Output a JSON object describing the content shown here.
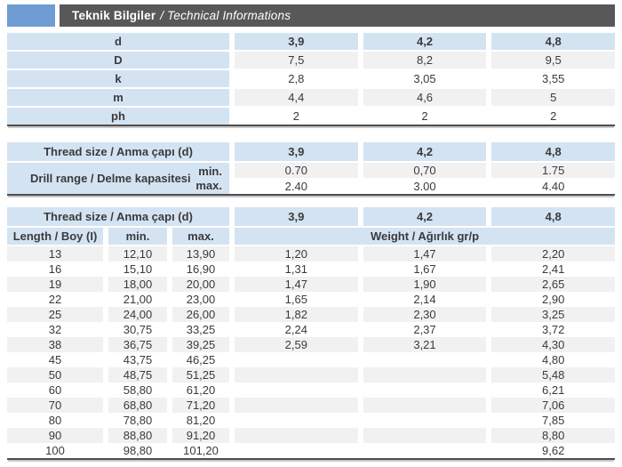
{
  "header": {
    "title_turkish": "Teknik Bilgiler",
    "title_english": "/ Technical Informations",
    "bar_color": "#58585a",
    "accent_color": "#6f9cd2"
  },
  "colors": {
    "header_cell_blue": "#d4e3f2",
    "row_stripe_gray": "#f1f1f2",
    "row_white": "#ffffff",
    "text": "#3a3a3c",
    "table_border": "#4e4e50"
  },
  "dimensions_table": {
    "rows": [
      {
        "label": "d",
        "header": true,
        "values": [
          "3,9",
          "4,2",
          "4,8"
        ]
      },
      {
        "label": "D",
        "header": false,
        "values": [
          "7,5",
          "8,2",
          "9,5"
        ]
      },
      {
        "label": "k",
        "header": false,
        "values": [
          "2,8",
          "3,05",
          "3,55"
        ]
      },
      {
        "label": "m",
        "header": false,
        "values": [
          "4,4",
          "4,6",
          "5"
        ]
      },
      {
        "label": "ph",
        "header": false,
        "values": [
          "2",
          "2",
          "2"
        ]
      }
    ]
  },
  "drill_table": {
    "header_label": "Thread size / Anma çapı (d)",
    "header_values": [
      "3,9",
      "4,2",
      "4,8"
    ],
    "range_label": "Drill range / Delme kapasitesi",
    "min_label": "min.",
    "max_label": "max.",
    "min_values": [
      "0.70",
      "0,70",
      "1.75"
    ],
    "max_values": [
      "2.40",
      "3.00",
      "4.40"
    ]
  },
  "length_table": {
    "header_label": "Thread size / Anma çapı (d)",
    "header_values": [
      "3,9",
      "4,2",
      "4,8"
    ],
    "length_col_label": "Length / Boy (I)",
    "min_col_label": "min.",
    "max_col_label": "max.",
    "weight_label": "Weight / Ağırlık gr/p",
    "rows": [
      {
        "length": "13",
        "min": "12,10",
        "max": "13,90",
        "weights": [
          "1,20",
          "1,47",
          "2,20"
        ]
      },
      {
        "length": "16",
        "min": "15,10",
        "max": "16,90",
        "weights": [
          "1,31",
          "1,67",
          "2,41"
        ]
      },
      {
        "length": "19",
        "min": "18,00",
        "max": "20,00",
        "weights": [
          "1,47",
          "1,90",
          "2,65"
        ]
      },
      {
        "length": "22",
        "min": "21,00",
        "max": "23,00",
        "weights": [
          "1,65",
          "2,14",
          "2,90"
        ]
      },
      {
        "length": "25",
        "min": "24,00",
        "max": "26,00",
        "weights": [
          "1,82",
          "2,30",
          "3,25"
        ]
      },
      {
        "length": "32",
        "min": "30,75",
        "max": "33,25",
        "weights": [
          "2,24",
          "2,37",
          "3,72"
        ]
      },
      {
        "length": "38",
        "min": "36,75",
        "max": "39,25",
        "weights": [
          "2,59",
          "3,21",
          "4,30"
        ]
      },
      {
        "length": "45",
        "min": "43,75",
        "max": "46,25",
        "weights": [
          "",
          "",
          "4,80"
        ]
      },
      {
        "length": "50",
        "min": "48,75",
        "max": "51,25",
        "weights": [
          "",
          "",
          "5,48"
        ]
      },
      {
        "length": "60",
        "min": "58,80",
        "max": "61,20",
        "weights": [
          "",
          "",
          "6,21"
        ]
      },
      {
        "length": "70",
        "min": "68,80",
        "max": "71,20",
        "weights": [
          "",
          "",
          "7,06"
        ]
      },
      {
        "length": "80",
        "min": "78,80",
        "max": "81,20",
        "weights": [
          "",
          "",
          "7,85"
        ]
      },
      {
        "length": "90",
        "min": "88,80",
        "max": "91,20",
        "weights": [
          "",
          "",
          "8,80"
        ]
      },
      {
        "length": "100",
        "min": "98,80",
        "max": "101,20",
        "weights": [
          "",
          "",
          "9,62"
        ]
      }
    ]
  }
}
